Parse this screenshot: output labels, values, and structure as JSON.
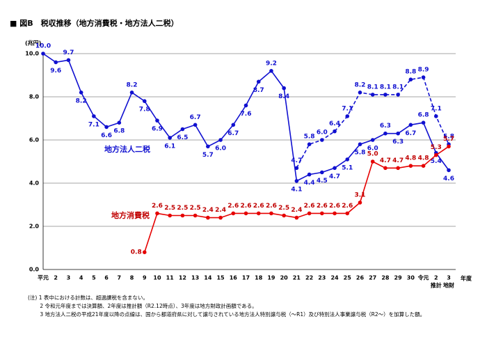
{
  "chart_data": {
    "type": "line",
    "title": "■ 図B　税収推移（地方消費税・地方法人二税）",
    "y_unit": "(兆円)",
    "x_label": "年度",
    "x_sublabels": [
      "推計",
      "地財"
    ],
    "categories": [
      "平元",
      "2",
      "3",
      "4",
      "5",
      "6",
      "7",
      "8",
      "9",
      "10",
      "11",
      "12",
      "13",
      "14",
      "15",
      "16",
      "17",
      "18",
      "19",
      "20",
      "21",
      "22",
      "23",
      "24",
      "25",
      "26",
      "27",
      "28",
      "29",
      "30",
      "令元",
      "2",
      "3"
    ],
    "ylim": [
      0,
      10
    ],
    "yticks": [
      {
        "value": 0,
        "label": "0.0"
      },
      {
        "value": 2,
        "label": "2.0"
      },
      {
        "value": 4,
        "label": "4.0"
      },
      {
        "value": 6,
        "label": "6.0"
      },
      {
        "value": 8,
        "label": "8.0"
      },
      {
        "value": 10,
        "label": "10.0"
      }
    ],
    "grid": true,
    "series": [
      {
        "name": "地方法人二税",
        "color": "#1010d0",
        "dashed": false,
        "values": [
          10.0,
          9.6,
          9.7,
          8.2,
          7.1,
          6.6,
          6.8,
          8.2,
          7.8,
          6.9,
          6.1,
          6.5,
          6.7,
          5.7,
          6.0,
          6.7,
          7.6,
          8.7,
          9.2,
          8.4,
          4.1,
          4.4,
          4.5,
          4.7,
          5.1,
          5.8,
          6.0,
          6.3,
          6.3,
          6.7,
          6.8,
          5.4,
          4.6
        ],
        "value_labels": [
          "10.0",
          "9.6",
          "9.7",
          "8.2",
          "7.1",
          "6.6",
          "6.8",
          "8.2",
          "7.8",
          "6.9",
          "6.1",
          "6.5",
          "6.7",
          "5.7",
          "6.0",
          "6.7",
          "7.6",
          "8.7",
          "9.2",
          "8.4",
          "4.1",
          "4.4",
          "4.5",
          "4.7",
          "5.1",
          "5.8",
          "6.0",
          "6.3",
          "6.3",
          "6.7",
          "6.8",
          "5.4",
          "4.6"
        ]
      },
      {
        "color": "#1010d0",
        "dashed": true,
        "values": [
          null,
          null,
          null,
          null,
          null,
          null,
          null,
          null,
          null,
          null,
          null,
          null,
          null,
          null,
          null,
          null,
          null,
          null,
          null,
          null,
          4.7,
          5.8,
          6.0,
          6.4,
          7.1,
          8.2,
          8.1,
          8.1,
          8.1,
          8.8,
          8.9,
          7.1,
          5.8
        ],
        "value_labels": [
          null,
          null,
          null,
          null,
          null,
          null,
          null,
          null,
          null,
          null,
          null,
          null,
          null,
          null,
          null,
          null,
          null,
          null,
          null,
          null,
          "4.7",
          "5.8",
          "6.0",
          "6.4",
          "7.1",
          "8.2",
          "8.1",
          "8.1",
          "8.1",
          "8.8",
          "8.9",
          "7.1",
          "5.8"
        ]
      },
      {
        "name": "地方消費税",
        "color": "#e60000",
        "dashed": false,
        "values": [
          null,
          null,
          null,
          null,
          null,
          null,
          null,
          null,
          0.8,
          2.6,
          2.5,
          2.5,
          2.5,
          2.4,
          2.4,
          2.6,
          2.6,
          2.6,
          2.6,
          2.5,
          2.4,
          2.6,
          2.6,
          2.6,
          2.6,
          3.1,
          5.0,
          4.7,
          4.7,
          4.8,
          4.8,
          5.3,
          5.7
        ],
        "value_labels": [
          null,
          null,
          null,
          null,
          null,
          null,
          null,
          null,
          "0.8",
          "2.6",
          "2.5",
          "2.5",
          "2.5",
          "2.4",
          "2.4",
          "2.6",
          "2.6",
          "2.6",
          "2.6",
          "2.5",
          "2.4",
          "2.6",
          "2.6",
          "2.6",
          "2.6",
          "3.1",
          "5.0",
          "4.7",
          "4.7",
          "4.8",
          "4.8",
          "5.3",
          "5.7"
        ]
      }
    ],
    "notes": [
      "(注) 1 表中における計数は、超過課税を含まない。",
      "　　 2 令和元年度までは決算額、2年度は推計額（R2.12時点）、3年度は地方財政計画額である。",
      "　　 3 地方法人二税の平成21年度以降の点線は、国から都道府県に対して譲与されている地方法人特別譲与税（～R1）及び特別法人事業譲与税（R2～）を加算した額。"
    ]
  }
}
